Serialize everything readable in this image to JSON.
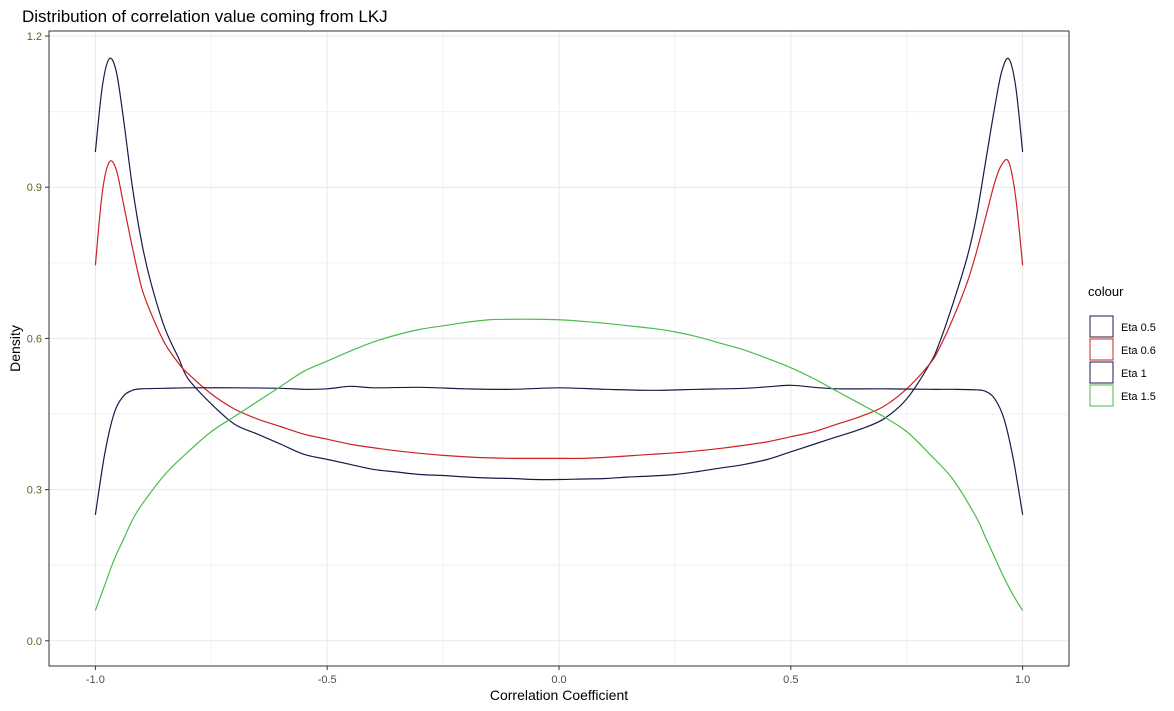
{
  "chart_data": {
    "type": "line",
    "title": "Distribution of correlation value coming from LKJ",
    "xlabel": "Correlation Coefficient",
    "ylabel": "Density",
    "xlim": [
      -1.1,
      1.1
    ],
    "ylim": [
      -0.05,
      1.21
    ],
    "x_ticks": [
      -1.0,
      -0.5,
      0.0,
      0.5,
      1.0
    ],
    "x_tick_labels": [
      "-1.0",
      "-0.5",
      "0.0",
      "0.5",
      "1.0"
    ],
    "y_ticks": [
      0.0,
      0.3,
      0.6,
      0.9,
      1.2
    ],
    "y_tick_labels": [
      "0.0",
      "0.3",
      "0.6",
      "0.9",
      "1.2"
    ],
    "grid": true,
    "legend": {
      "title": "colour",
      "placement": "right"
    },
    "series": [
      {
        "name": "Eta 0.5",
        "color": "#1a1a4a",
        "x": [
          -1.0,
          -0.985,
          -0.97,
          -0.955,
          -0.94,
          -0.92,
          -0.9,
          -0.88,
          -0.85,
          -0.82,
          -0.8,
          -0.75,
          -0.7,
          -0.65,
          -0.6,
          -0.55,
          -0.5,
          -0.45,
          -0.4,
          -0.35,
          -0.3,
          -0.25,
          -0.2,
          -0.15,
          -0.1,
          -0.05,
          0.0,
          0.05,
          0.1,
          0.15,
          0.2,
          0.25,
          0.3,
          0.35,
          0.4,
          0.45,
          0.5,
          0.55,
          0.6,
          0.65,
          0.7,
          0.75,
          0.8,
          0.82,
          0.85,
          0.88,
          0.9,
          0.92,
          0.94,
          0.955,
          0.97,
          0.985,
          1.0
        ],
        "values": [
          0.97,
          1.1,
          1.155,
          1.13,
          1.04,
          0.9,
          0.79,
          0.71,
          0.62,
          0.56,
          0.52,
          0.47,
          0.43,
          0.41,
          0.39,
          0.37,
          0.36,
          0.35,
          0.34,
          0.335,
          0.33,
          0.328,
          0.325,
          0.323,
          0.322,
          0.32,
          0.32,
          0.321,
          0.322,
          0.325,
          0.327,
          0.33,
          0.336,
          0.343,
          0.35,
          0.36,
          0.375,
          0.39,
          0.405,
          0.42,
          0.44,
          0.48,
          0.55,
          0.59,
          0.67,
          0.76,
          0.84,
          0.95,
          1.06,
          1.13,
          1.155,
          1.1,
          0.97
        ]
      },
      {
        "name": "Eta 0.6",
        "color": "#cc2222",
        "x": [
          -1.0,
          -0.985,
          -0.97,
          -0.955,
          -0.94,
          -0.92,
          -0.9,
          -0.88,
          -0.85,
          -0.82,
          -0.8,
          -0.75,
          -0.7,
          -0.65,
          -0.6,
          -0.55,
          -0.5,
          -0.45,
          -0.4,
          -0.35,
          -0.3,
          -0.25,
          -0.2,
          -0.15,
          -0.1,
          -0.05,
          0.0,
          0.05,
          0.1,
          0.15,
          0.2,
          0.25,
          0.3,
          0.35,
          0.4,
          0.45,
          0.5,
          0.55,
          0.6,
          0.65,
          0.7,
          0.75,
          0.8,
          0.82,
          0.85,
          0.88,
          0.9,
          0.92,
          0.94,
          0.955,
          0.97,
          0.985,
          1.0
        ],
        "values": [
          0.745,
          0.89,
          0.95,
          0.935,
          0.87,
          0.78,
          0.7,
          0.65,
          0.59,
          0.55,
          0.53,
          0.49,
          0.46,
          0.44,
          0.425,
          0.41,
          0.4,
          0.39,
          0.383,
          0.377,
          0.372,
          0.368,
          0.365,
          0.363,
          0.362,
          0.362,
          0.362,
          0.362,
          0.364,
          0.367,
          0.37,
          0.373,
          0.377,
          0.382,
          0.388,
          0.395,
          0.405,
          0.415,
          0.43,
          0.445,
          0.465,
          0.5,
          0.55,
          0.58,
          0.64,
          0.71,
          0.77,
          0.84,
          0.91,
          0.945,
          0.95,
          0.88,
          0.745
        ]
      },
      {
        "name": "Eta 1",
        "color": "#1a1a4a",
        "x": [
          -1.0,
          -0.98,
          -0.96,
          -0.94,
          -0.92,
          -0.9,
          -0.85,
          -0.8,
          -0.7,
          -0.6,
          -0.55,
          -0.5,
          -0.45,
          -0.4,
          -0.3,
          -0.2,
          -0.1,
          0.0,
          0.1,
          0.2,
          0.3,
          0.4,
          0.45,
          0.5,
          0.55,
          0.6,
          0.7,
          0.8,
          0.85,
          0.9,
          0.92,
          0.94,
          0.96,
          0.98,
          1.0
        ],
        "values": [
          0.25,
          0.37,
          0.45,
          0.485,
          0.497,
          0.5,
          0.501,
          0.502,
          0.502,
          0.501,
          0.499,
          0.5,
          0.505,
          0.502,
          0.503,
          0.5,
          0.499,
          0.502,
          0.499,
          0.497,
          0.499,
          0.501,
          0.504,
          0.507,
          0.503,
          0.5,
          0.5,
          0.499,
          0.499,
          0.498,
          0.495,
          0.48,
          0.44,
          0.36,
          0.25
        ]
      },
      {
        "name": "Eta 1.5",
        "color": "#4dbb4d",
        "x": [
          -1.0,
          -0.98,
          -0.96,
          -0.94,
          -0.92,
          -0.9,
          -0.85,
          -0.8,
          -0.75,
          -0.7,
          -0.65,
          -0.6,
          -0.55,
          -0.5,
          -0.45,
          -0.4,
          -0.35,
          -0.3,
          -0.25,
          -0.2,
          -0.15,
          -0.1,
          -0.05,
          0.0,
          0.05,
          0.1,
          0.15,
          0.2,
          0.25,
          0.3,
          0.35,
          0.4,
          0.45,
          0.5,
          0.55,
          0.6,
          0.65,
          0.7,
          0.75,
          0.8,
          0.85,
          0.9,
          0.92,
          0.94,
          0.96,
          0.98,
          1.0
        ],
        "values": [
          0.06,
          0.11,
          0.16,
          0.2,
          0.24,
          0.27,
          0.33,
          0.375,
          0.415,
          0.445,
          0.475,
          0.505,
          0.535,
          0.555,
          0.575,
          0.593,
          0.607,
          0.618,
          0.625,
          0.632,
          0.637,
          0.638,
          0.638,
          0.637,
          0.634,
          0.63,
          0.625,
          0.62,
          0.613,
          0.603,
          0.59,
          0.577,
          0.56,
          0.542,
          0.52,
          0.495,
          0.47,
          0.445,
          0.415,
          0.37,
          0.32,
          0.245,
          0.205,
          0.165,
          0.125,
          0.09,
          0.06
        ]
      }
    ]
  }
}
